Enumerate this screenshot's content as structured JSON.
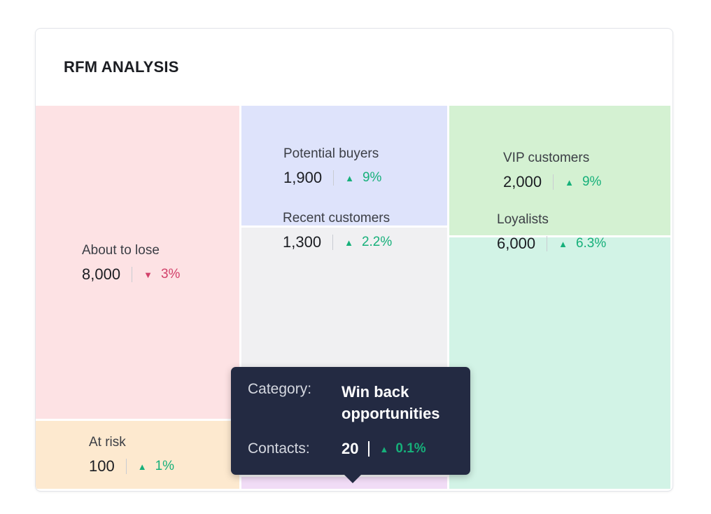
{
  "card": {
    "title": "RFM ANALYSIS"
  },
  "chart_data": {
    "type": "treemap",
    "title": "RFM ANALYSIS",
    "segments": [
      {
        "name": "About to lose",
        "contacts": 8000,
        "contacts_label": "8,000",
        "change": "3%",
        "trend": "down",
        "color": "#fde2e4"
      },
      {
        "name": "At risk",
        "contacts": 100,
        "contacts_label": "100",
        "change": "1%",
        "trend": "up",
        "color": "#fde9cf"
      },
      {
        "name": "Potential buyers",
        "contacts": 1900,
        "contacts_label": "1,900",
        "change": "9%",
        "trend": "up",
        "color": "#dee3fb"
      },
      {
        "name": "Recent customers",
        "contacts": 1300,
        "contacts_label": "1,300",
        "change": "2.2%",
        "trend": "up",
        "color": "#f0f0f2"
      },
      {
        "name": "Win back opportunities",
        "contacts": 20,
        "contacts_label": "20",
        "change": "0.1%",
        "trend": "up",
        "color": "#f1dcf6"
      },
      {
        "name": "VIP customers",
        "contacts": 2000,
        "contacts_label": "2,000",
        "change": "9%",
        "trend": "up",
        "color": "#d4f1d2"
      },
      {
        "name": "Loyalists",
        "contacts": 6000,
        "contacts_label": "6,000",
        "change": "6.3%",
        "trend": "up",
        "color": "#d2f3e6"
      }
    ],
    "trend_colors": {
      "up": "#16b07a",
      "down": "#d2416a"
    }
  },
  "tooltip": {
    "category_label": "Category:",
    "category_value": "Win back opportunities",
    "contacts_label": "Contacts:",
    "contacts_value": "20",
    "change": "0.1%"
  }
}
